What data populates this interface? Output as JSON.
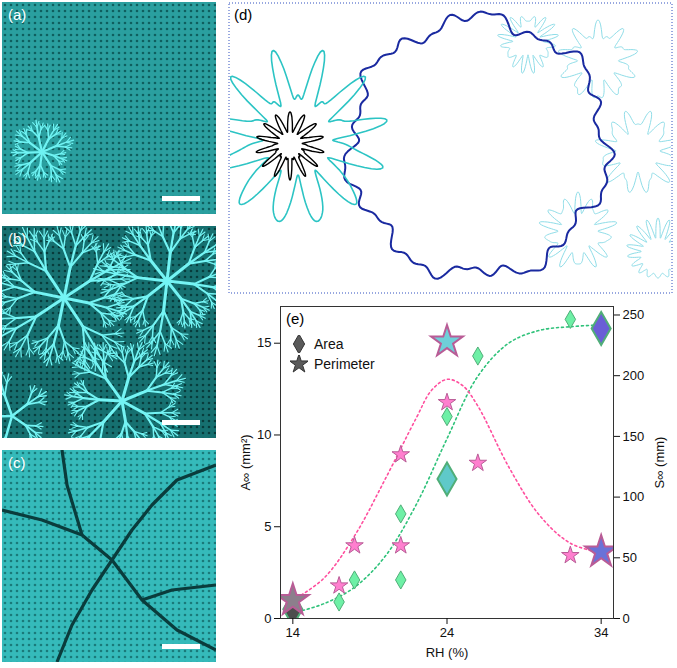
{
  "figure": {
    "panels": [
      {
        "label": "(a)"
      },
      {
        "label": "(b)"
      },
      {
        "label": "(c)"
      },
      {
        "label": "(d)"
      }
    ]
  },
  "chart_data": {
    "panel_label": "(e)",
    "type": "scatter",
    "x_label": "RH (%)",
    "y_label": "A∞ (mm²)",
    "y2_label": "S∞ (mm)",
    "xlim": [
      13.2,
      34.8
    ],
    "xticks": [
      14,
      24,
      34
    ],
    "ylim": [
      0,
      17
    ],
    "yticks": [
      0,
      5,
      10,
      15
    ],
    "y2lim": [
      0,
      257
    ],
    "y2ticks": [
      0,
      50,
      100,
      150,
      200,
      250
    ],
    "legend": "upper left",
    "series": [
      {
        "type": "line",
        "line_style": "dotted",
        "color": "#2fc27a",
        "x": [
          14,
          16,
          18,
          20,
          22,
          24,
          26,
          28,
          30,
          32,
          34
        ],
        "values": [
          0.3,
          0.8,
          1.7,
          3.4,
          6.2,
          9.8,
          13.2,
          15.0,
          15.7,
          15.9,
          16.0
        ]
      },
      {
        "type": "line",
        "line_style": "dotted",
        "color": "#ff4f9e",
        "axis": "y2",
        "x": [
          14,
          16,
          18,
          20,
          22,
          23,
          24,
          25,
          26,
          28,
          30,
          32,
          34
        ],
        "values": [
          15,
          33,
          68,
          115,
          165,
          188,
          197,
          192,
          175,
          125,
          85,
          62,
          54
        ]
      },
      {
        "name": "Area",
        "type": "scatter",
        "marker": "diamond",
        "color": "#6ef0a6",
        "x": [
          14,
          14,
          17,
          18,
          21,
          21,
          24,
          24,
          26,
          32,
          34
        ],
        "values": [
          0.5,
          0.3,
          0.9,
          2.1,
          5.7,
          2.1,
          11.0,
          7.6,
          14.3,
          16.3,
          15.8
        ],
        "colors": [
          "#4d4d4d",
          "#6ef0a6",
          "#6ef0a6",
          "#6ef0a6",
          "#6ef0a6",
          "#6ef0a6",
          "#6ef0a6",
          "#5fc9c9",
          "#6ef0a6",
          "#6ef0a6",
          "#6a5fd6"
        ]
      },
      {
        "name": "Perimeter",
        "type": "scatter",
        "marker": "star",
        "color": "#ff7fcf",
        "axis": "y2",
        "x": [
          14,
          17,
          18,
          21,
          21,
          24,
          24,
          26,
          32,
          34
        ],
        "values": [
          15,
          27,
          60,
          135,
          60,
          228,
          178,
          128,
          52,
          55
        ],
        "colors": [
          "#8c7f8c",
          "#ff7fcf",
          "#ff7fcf",
          "#ff7fcf",
          "#ff7fcf",
          "#6fcfd8",
          "#ff7fcf",
          "#ff7fcf",
          "#ff7fcf",
          "#6a72d8"
        ]
      }
    ]
  }
}
